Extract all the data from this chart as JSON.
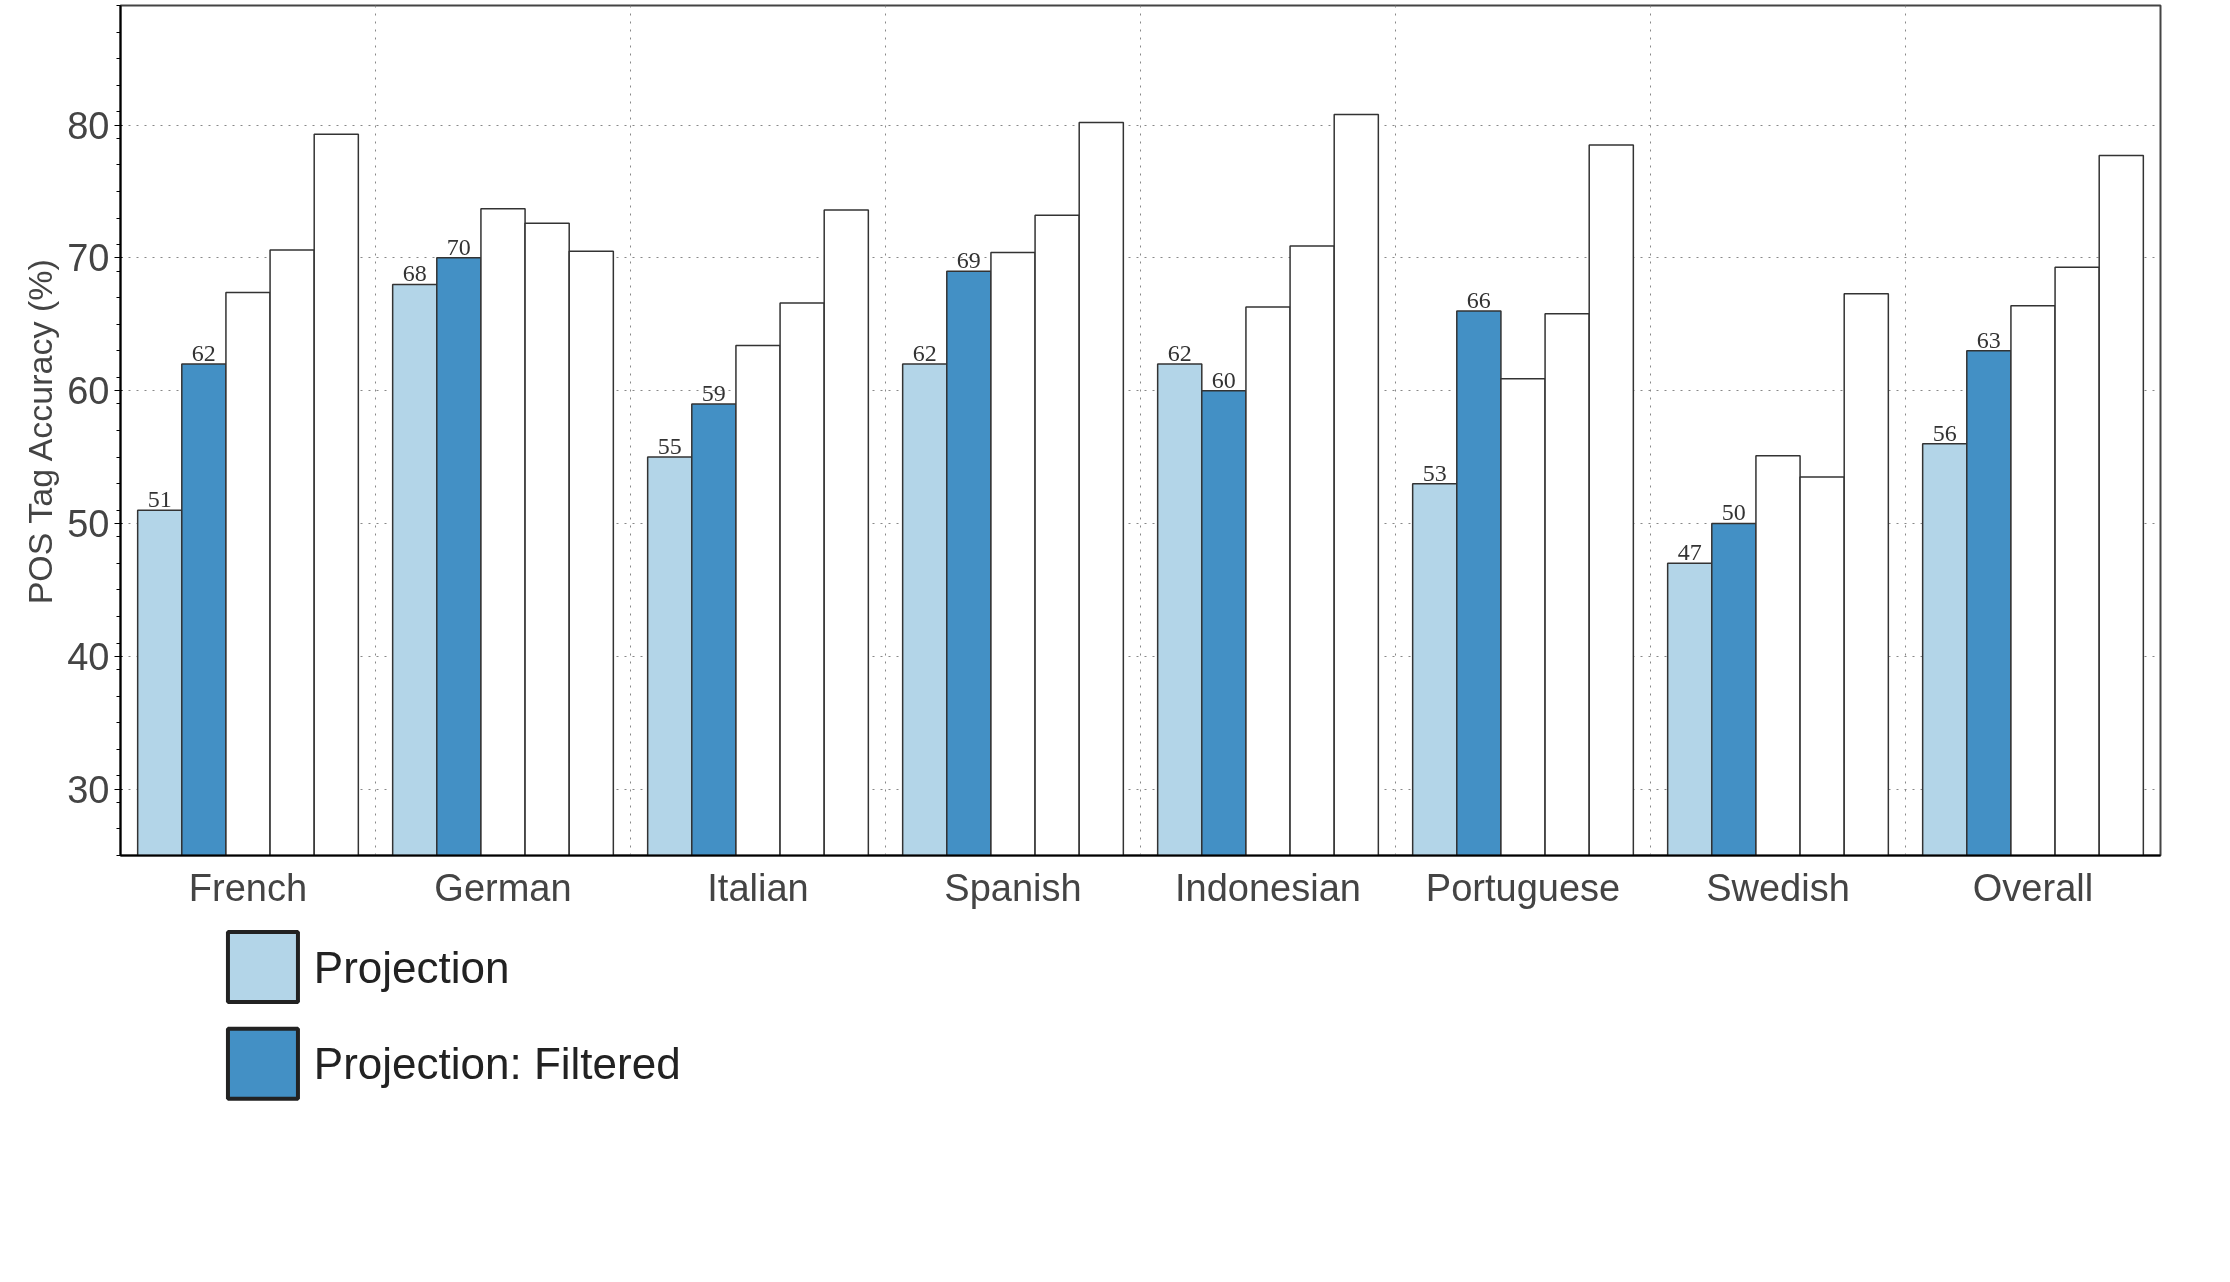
{
  "chart_data": {
    "type": "bar",
    "ylabel": "POS Tag Accuracy (%)",
    "categories": [
      "French",
      "German",
      "Italian",
      "Spanish",
      "Indonesian",
      "Portuguese",
      "Swedish",
      "Overall"
    ],
    "series": [
      {
        "name": "Projection",
        "color": "#b3d5e8",
        "values": [
          51,
          68,
          55,
          62,
          62,
          53,
          47,
          56
        ],
        "value_labels": [
          "51",
          "68",
          "55",
          "62",
          "62",
          "53",
          "47",
          "56"
        ]
      },
      {
        "name": "Projection: Filtered",
        "color": "#4390c5",
        "values": [
          62,
          70,
          59,
          69,
          60,
          66,
          50,
          63
        ],
        "value_labels": [
          "62",
          "70",
          "59",
          "69",
          "60",
          "66",
          "50",
          "63"
        ]
      },
      {
        "color": "#ffffff",
        "values": [
          67.4,
          73.7,
          63.4,
          70.4,
          66.3,
          60.9,
          55.1,
          66.4
        ]
      },
      {
        "color": "#ffffff",
        "values": [
          70.6,
          72.6,
          66.6,
          73.2,
          70.9,
          65.8,
          53.5,
          69.3
        ]
      },
      {
        "color": "#ffffff",
        "values": [
          79.3,
          70.5,
          73.6,
          80.2,
          80.8,
          78.5,
          67.3,
          77.7
        ]
      }
    ],
    "ylim": [
      25,
      89
    ],
    "yticks": [
      30,
      40,
      50,
      60,
      70,
      80
    ],
    "grid": true,
    "legend": "bottom"
  }
}
